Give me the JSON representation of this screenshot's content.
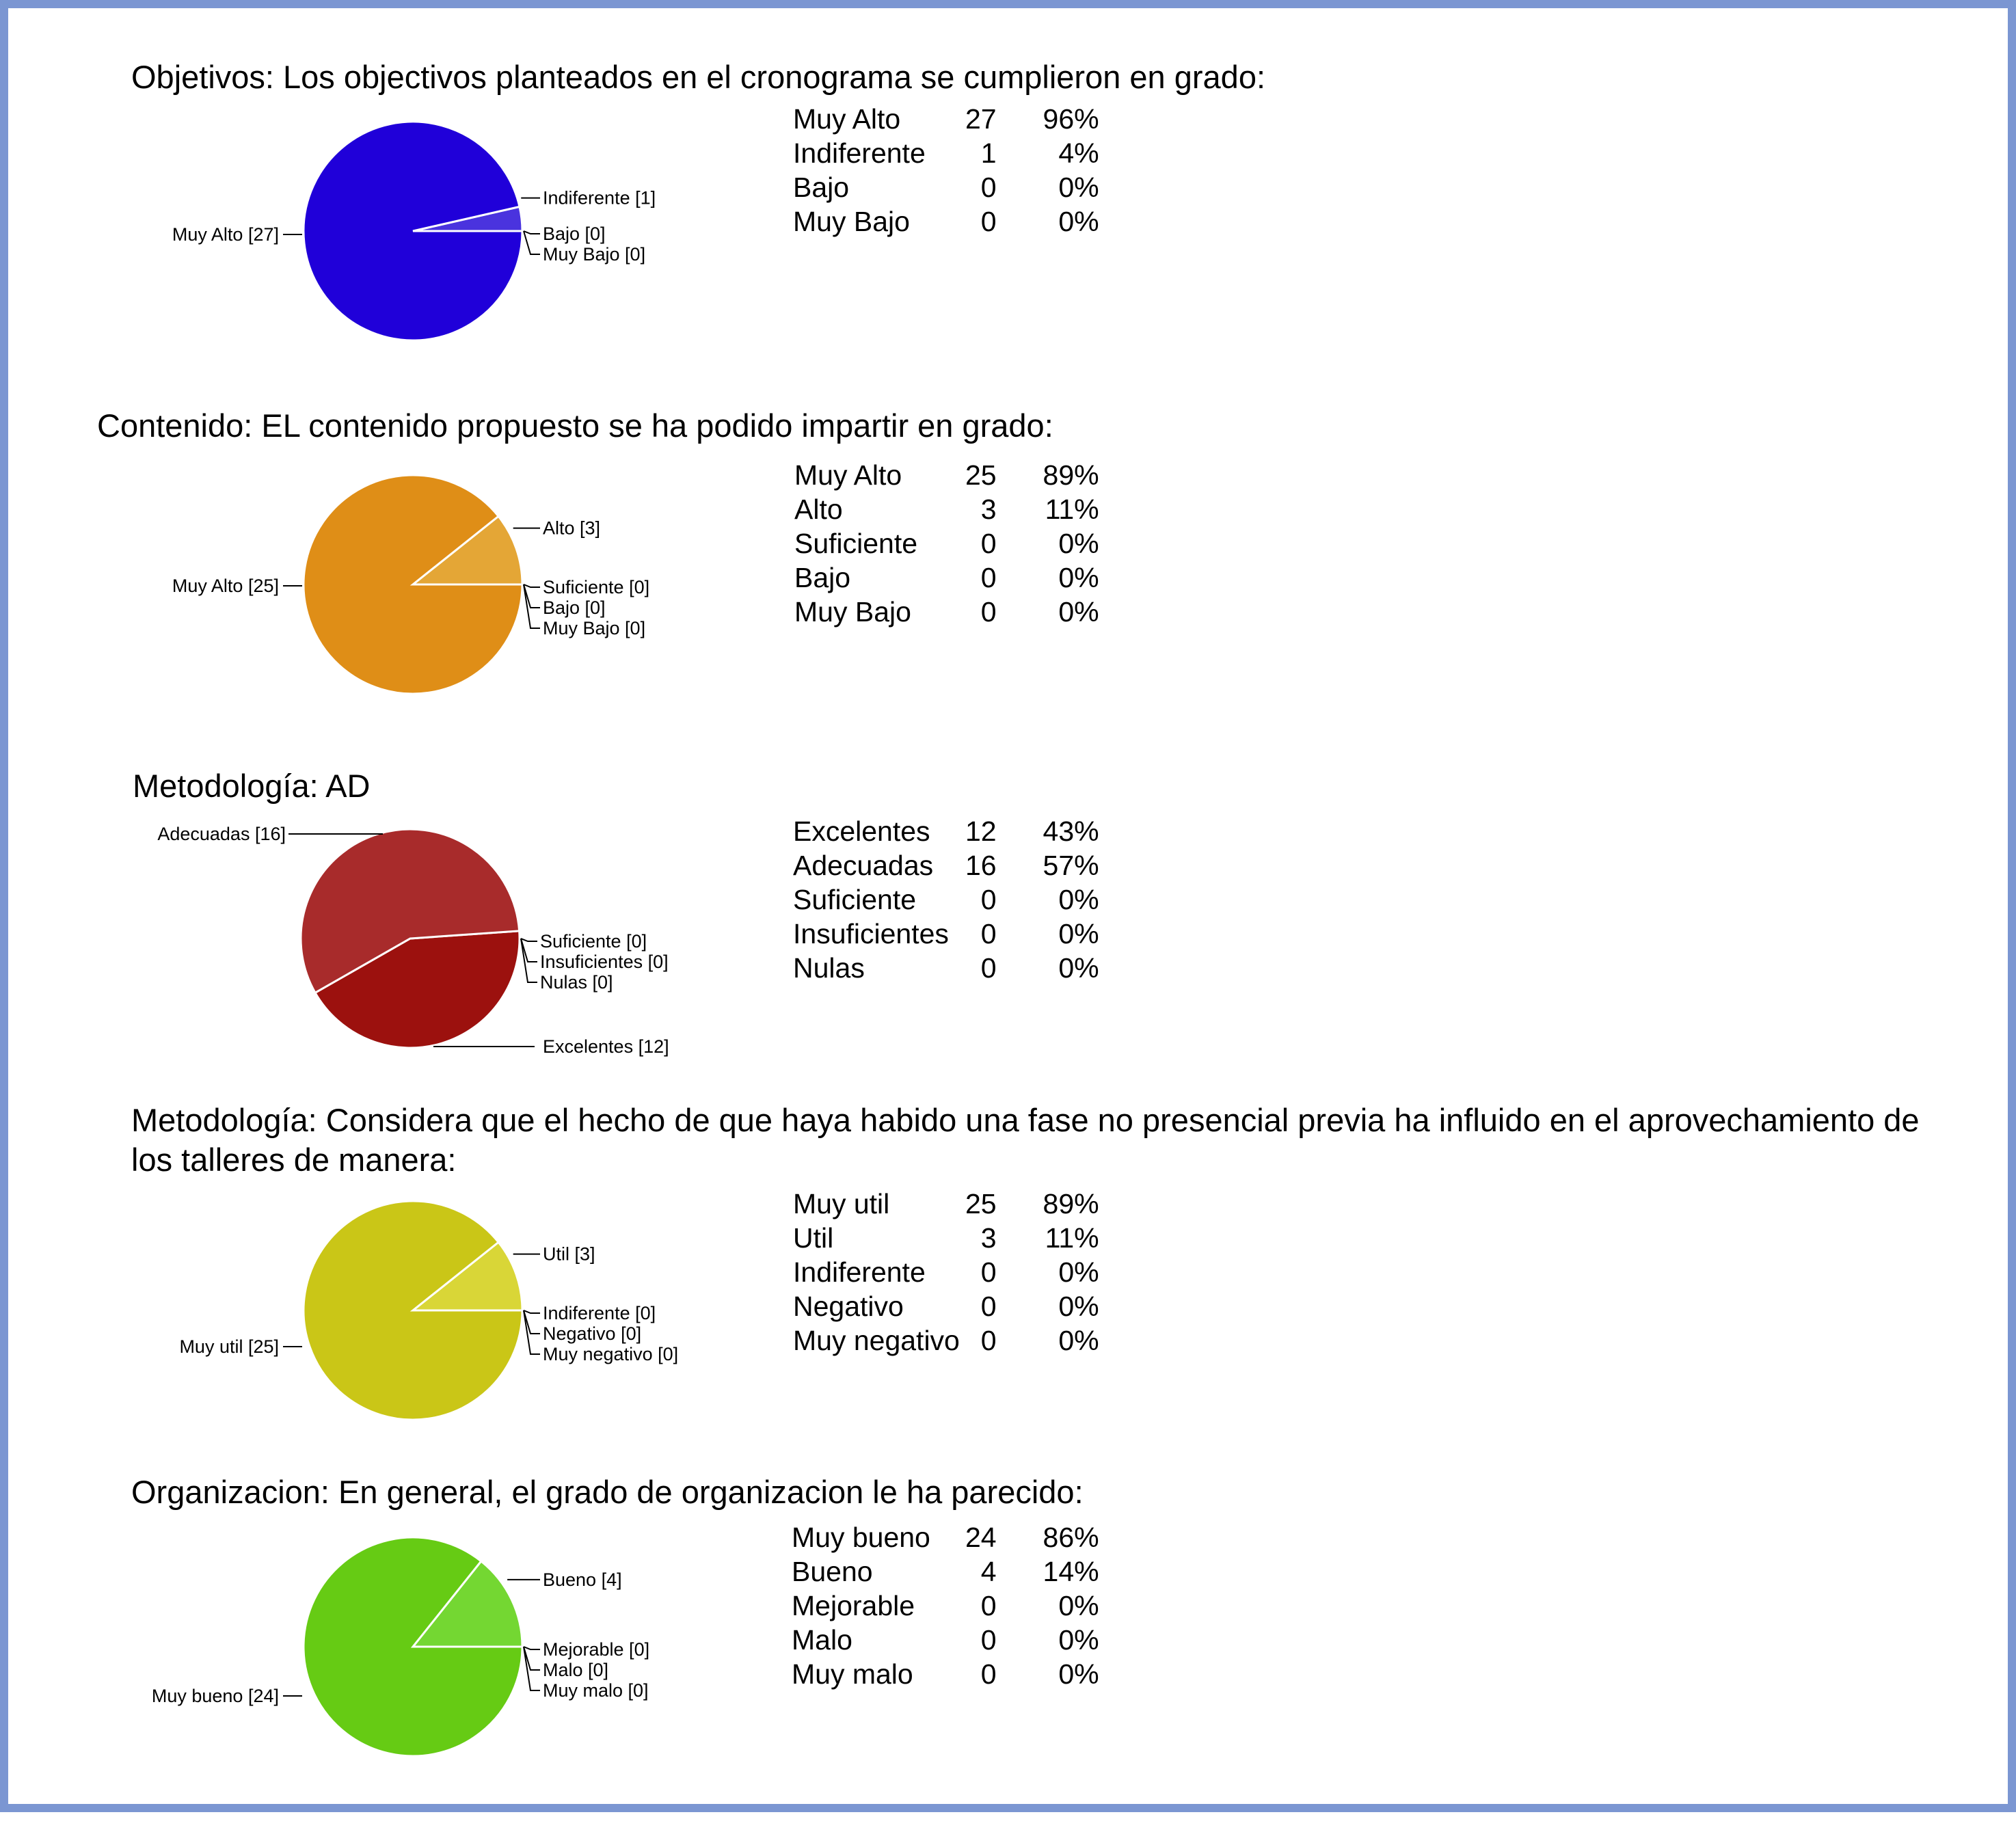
{
  "chart_data": [
    {
      "type": "pie",
      "title": "Objetivos: Los objectivos planteados en el cronograma se cumplieron en grado:",
      "start_deg": 90,
      "slices": [
        {
          "label": "Muy Alto",
          "value": 27,
          "percent": "96%",
          "color": "#2000d9"
        },
        {
          "label": "Indiferente",
          "value": 1,
          "percent": "4%",
          "color": "#4a33de"
        },
        {
          "label": "Bajo",
          "value": 0,
          "percent": "0%",
          "color": "#2000d9"
        },
        {
          "label": "Muy Bajo",
          "value": 0,
          "percent": "0%",
          "color": "#2000d9"
        }
      ]
    },
    {
      "type": "pie",
      "title": "Contenido: EL contenido propuesto se ha podido impartir en grado:",
      "start_deg": 90,
      "slices": [
        {
          "label": "Muy Alto",
          "value": 25,
          "percent": "89%",
          "color": "#df8e17"
        },
        {
          "label": "Alto",
          "value": 3,
          "percent": "11%",
          "color": "#e4a636"
        },
        {
          "label": "Suficiente",
          "value": 0,
          "percent": "0%",
          "color": "#df8e17"
        },
        {
          "label": "Bajo",
          "value": 0,
          "percent": "0%",
          "color": "#df8e17"
        },
        {
          "label": "Muy Bajo",
          "value": 0,
          "percent": "0%",
          "color": "#df8e17"
        }
      ]
    },
    {
      "type": "pie",
      "title": "Metodología: AD",
      "start_deg": 88,
      "slices": [
        {
          "label": "Excelentes",
          "value": 12,
          "percent": "43%",
          "color": "#9c110e"
        },
        {
          "label": "Adecuadas",
          "value": 16,
          "percent": "57%",
          "color": "#a82b2b"
        },
        {
          "label": "Suficiente",
          "value": 0,
          "percent": "0%",
          "color": "#9c110e"
        },
        {
          "label": "Insuficientes",
          "value": 0,
          "percent": "0%",
          "color": "#9c110e"
        },
        {
          "label": "Nulas",
          "value": 0,
          "percent": "0%",
          "color": "#9c110e"
        }
      ]
    },
    {
      "type": "pie",
      "title": "Metodología: Considera que el hecho de que haya habido una fase no presencial previa ha influido en el aprovechamiento de los talleres de manera:",
      "start_deg": 90,
      "slices": [
        {
          "label": "Muy util",
          "value": 25,
          "percent": "89%",
          "color": "#cac617"
        },
        {
          "label": "Util",
          "value": 3,
          "percent": "11%",
          "color": "#d9d637"
        },
        {
          "label": "Indiferente",
          "value": 0,
          "percent": "0%",
          "color": "#cac617"
        },
        {
          "label": "Negativo",
          "value": 0,
          "percent": "0%",
          "color": "#cac617"
        },
        {
          "label": "Muy negativo",
          "value": 0,
          "percent": "0%",
          "color": "#cac617"
        }
      ]
    },
    {
      "type": "pie",
      "title": "Organizacion: En general, el grado de organizacion le ha parecido:",
      "start_deg": 90,
      "slices": [
        {
          "label": "Muy bueno",
          "value": 24,
          "percent": "86%",
          "color": "#66cb14"
        },
        {
          "label": "Bueno",
          "value": 4,
          "percent": "14%",
          "color": "#74d732"
        },
        {
          "label": "Mejorable",
          "value": 0,
          "percent": "0%",
          "color": "#66cb14"
        },
        {
          "label": "Malo",
          "value": 0,
          "percent": "0%",
          "color": "#66cb14"
        },
        {
          "label": "Muy malo",
          "value": 0,
          "percent": "0%",
          "color": "#66cb14"
        }
      ]
    }
  ]
}
